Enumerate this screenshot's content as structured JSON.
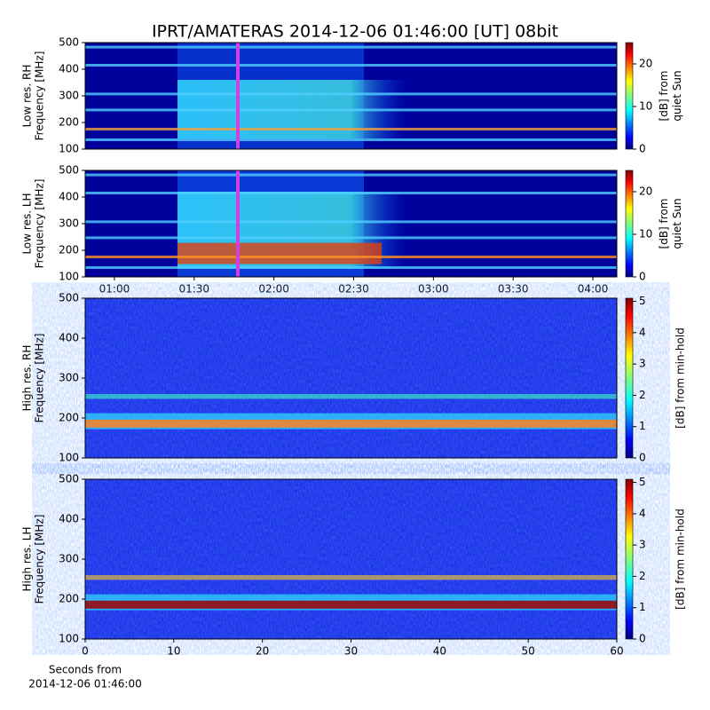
{
  "chart_data": [
    {
      "type": "spectrogram",
      "title": "IPRT/AMATERAS 2014-12-06 01:46:00 [UT]   08bit",
      "ylabel": [
        "Low res. RH",
        "Frequency [MHz]"
      ],
      "ylim": [
        100,
        500
      ],
      "yticks": [
        100,
        200,
        300,
        400,
        500
      ],
      "clabel": [
        "[dB] from",
        "quiet Sun"
      ],
      "clim": [
        0,
        25
      ],
      "cticks": [
        0,
        10,
        20
      ]
    },
    {
      "type": "spectrogram",
      "ylabel": [
        "Low res. LH",
        "Frequency [MHz]"
      ],
      "ylim": [
        100,
        500
      ],
      "yticks": [
        100,
        200,
        300,
        400,
        500
      ],
      "xlim": [
        49,
        249
      ],
      "xticks": [
        {
          "value": 60,
          "label": "01:00"
        },
        {
          "value": 90,
          "label": "01:30"
        },
        {
          "value": 120,
          "label": "02:00"
        },
        {
          "value": 150,
          "label": "02:30"
        },
        {
          "value": 180,
          "label": "03:00"
        },
        {
          "value": 210,
          "label": "03:30"
        },
        {
          "value": 240,
          "label": "04:00"
        }
      ],
      "clabel": [
        "[dB] from",
        "quiet Sun"
      ],
      "clim": [
        0,
        25
      ],
      "cticks": [
        0,
        10,
        20
      ]
    },
    {
      "type": "spectrogram",
      "ylabel": [
        "High res. RH",
        "Frequency [MHz]"
      ],
      "ylim": [
        100,
        500
      ],
      "yticks": [
        100,
        200,
        300,
        400,
        500
      ],
      "clabel": [
        "[dB] from min-hold"
      ],
      "clim": [
        0,
        5.1
      ],
      "cticks": [
        0,
        1,
        2,
        3,
        4,
        5
      ]
    },
    {
      "type": "spectrogram",
      "ylabel": [
        "High res. LH",
        "Frequency [MHz]"
      ],
      "ylim": [
        100,
        500
      ],
      "yticks": [
        100,
        200,
        300,
        400,
        500
      ],
      "xlim": [
        0,
        60
      ],
      "xticks": [
        0,
        10,
        20,
        30,
        40,
        50,
        60
      ],
      "xlabel": [
        "Seconds from",
        "2014-12-06 01:46:00"
      ],
      "clabel": [
        "[dB] from min-hold"
      ],
      "clim": [
        0,
        5.1
      ],
      "cticks": [
        0,
        1,
        2,
        3,
        4,
        5
      ]
    }
  ]
}
